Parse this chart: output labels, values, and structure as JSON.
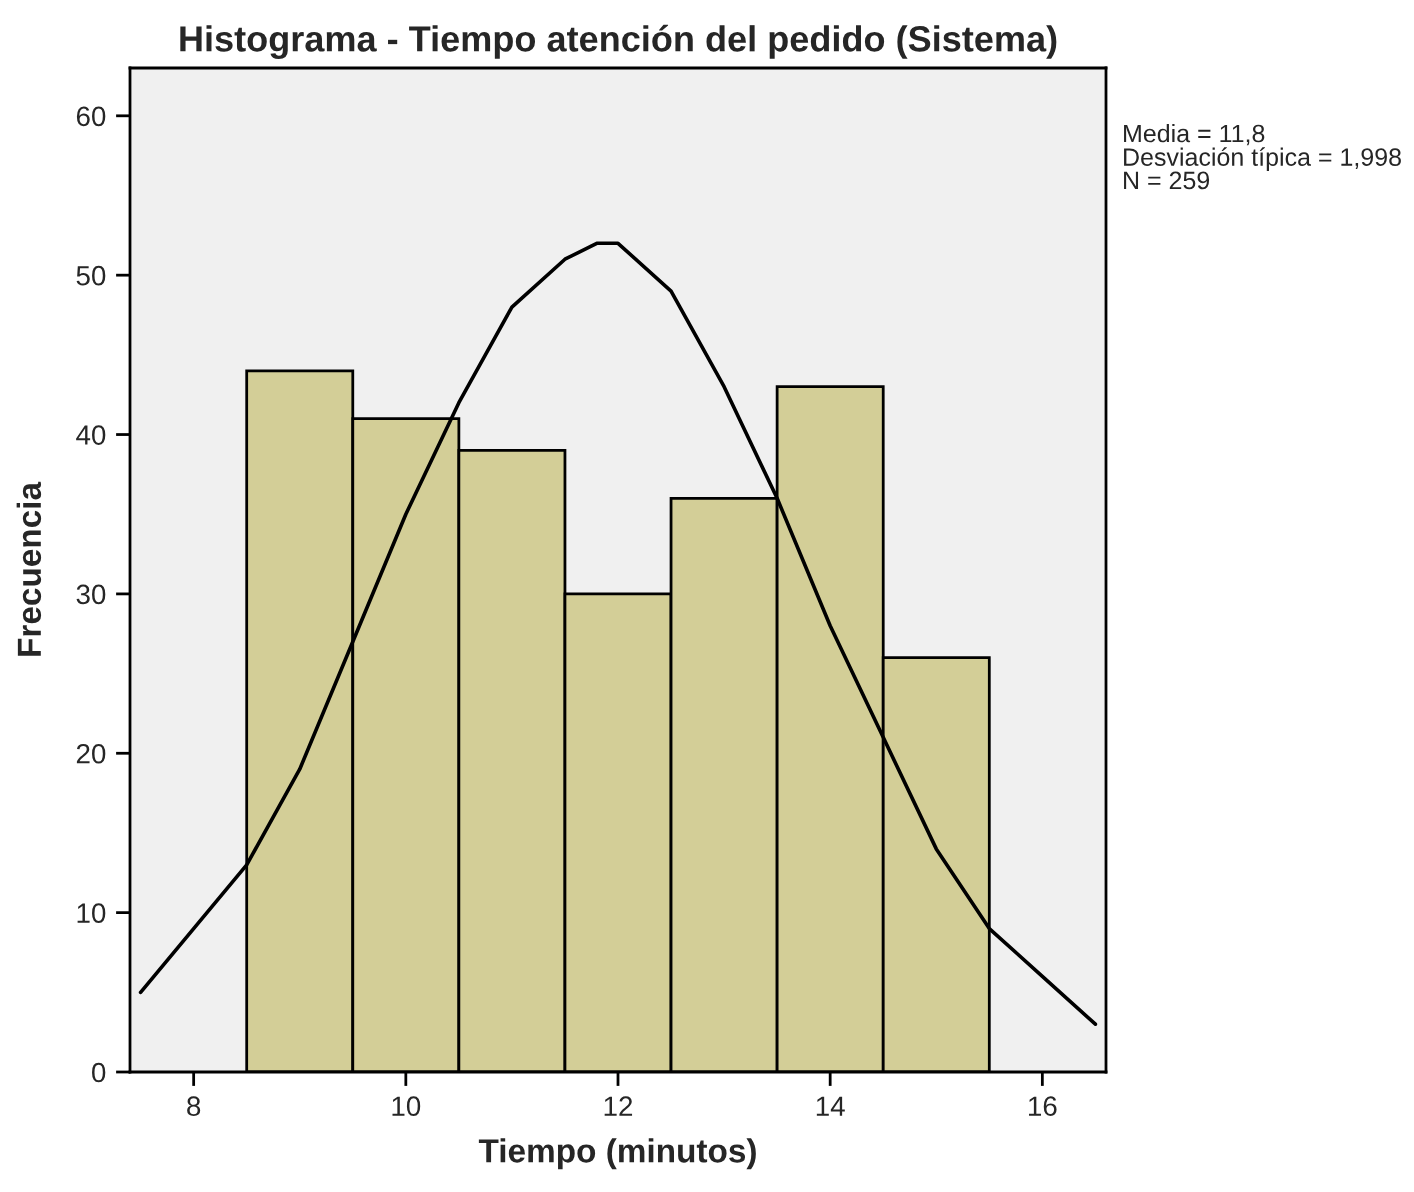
{
  "chart_data": {
    "type": "histogram",
    "title": "Histograma - Tiempo atención del pedido (Sistema)",
    "xlabel": "Tiempo (minutos)",
    "ylabel": "Frecuencia",
    "bins": [
      8.5,
      9.5,
      10.5,
      11.5,
      12.5,
      13.5,
      14.5,
      15.5
    ],
    "values": [
      44,
      41,
      39,
      30,
      36,
      43,
      26
    ],
    "color": "#d3ce97",
    "series": [
      {
        "type": "line",
        "color": "#000000",
        "x": [
          7.5,
          8,
          8.5,
          9,
          9.5,
          10,
          10.5,
          11,
          11.5,
          11.8,
          12,
          12.5,
          13,
          13.5,
          14,
          14.5,
          15,
          15.5,
          16,
          16.5
        ],
        "values": [
          5,
          9,
          13,
          19,
          27,
          35,
          42,
          48,
          51,
          52,
          52,
          49,
          43,
          36,
          28,
          21,
          14,
          9,
          6,
          3
        ]
      }
    ],
    "xlim": [
      7.4,
      16.6
    ],
    "xticks": [
      8,
      10,
      12,
      14,
      16
    ],
    "ylim": [
      0,
      63
    ],
    "yticks": [
      0,
      10,
      20,
      30,
      40,
      50,
      60
    ],
    "grid": false,
    "legend": false,
    "annotations": [
      "Media = 11,8\nDesviación típica = 1,998\nN = 259"
    ]
  }
}
